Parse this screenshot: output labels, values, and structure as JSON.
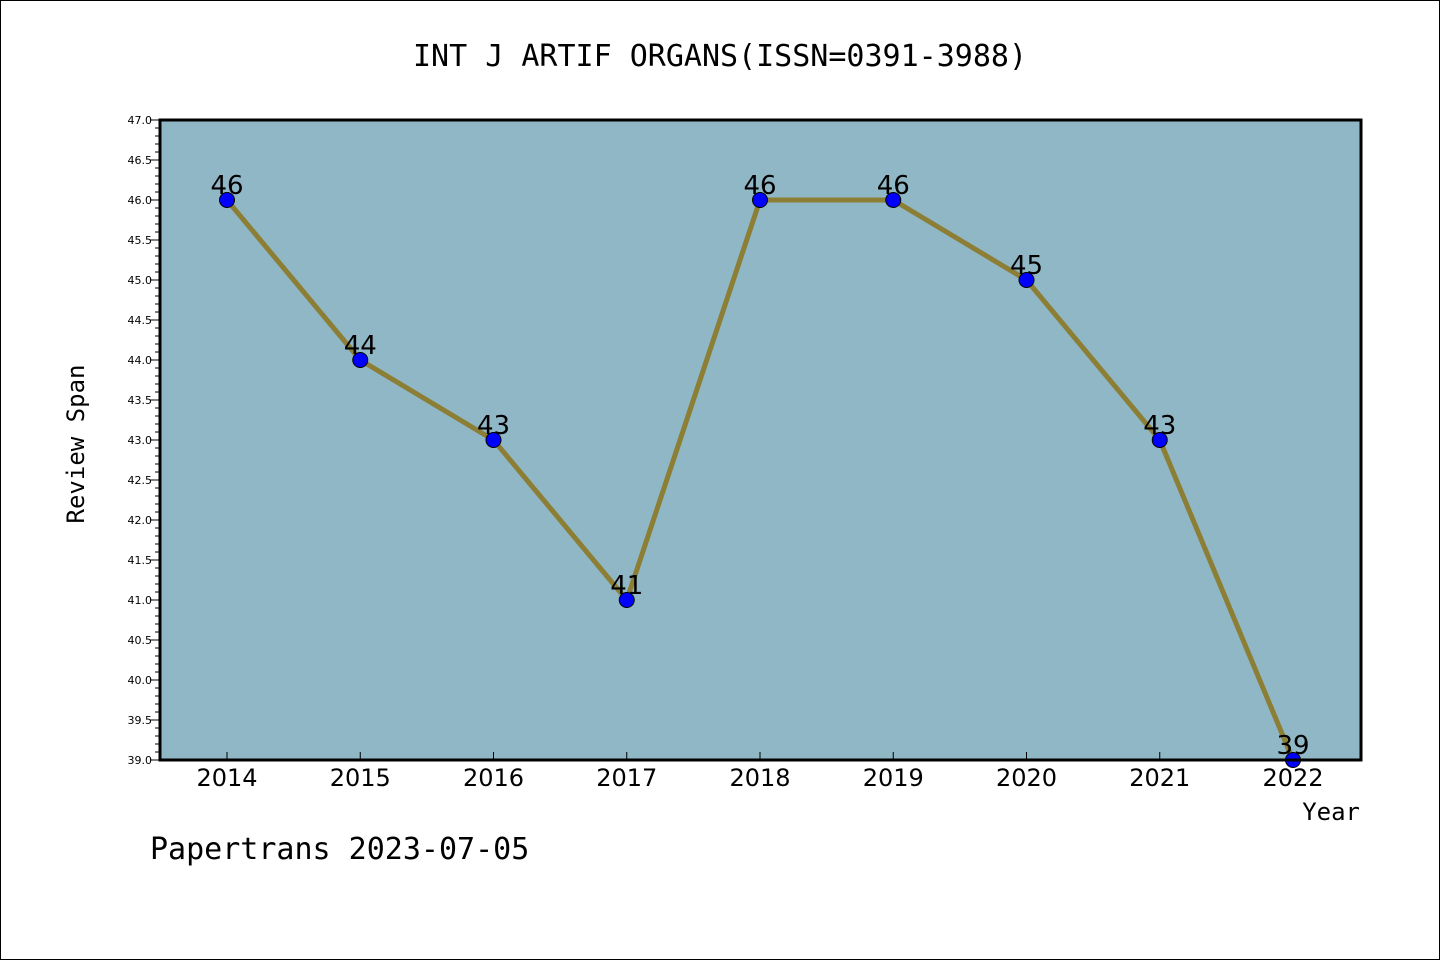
{
  "chart_data": {
    "type": "line",
    "title": "INT J ARTIF ORGANS(ISSN=0391-3988)",
    "xlabel": "Year",
    "ylabel": "Review Span",
    "categories": [
      "2014",
      "2015",
      "2016",
      "2017",
      "2018",
      "2019",
      "2020",
      "2021",
      "2022"
    ],
    "series": [
      {
        "values": [
          46,
          44,
          43,
          41,
          46,
          46,
          45,
          43,
          39
        ]
      }
    ],
    "data_labels": [
      "46",
      "44",
      "43",
      "41",
      "46",
      "46",
      "45",
      "43",
      "39"
    ],
    "ylim": [
      39.0,
      47.0
    ],
    "ytick_step": 0.5,
    "ytick_labels": [
      "39.0",
      "39.5",
      "40.0",
      "40.5",
      "41.0",
      "41.5",
      "42.0",
      "42.5",
      "43.0",
      "43.5",
      "44.0",
      "44.5",
      "45.0",
      "45.5",
      "46.0",
      "46.5",
      "47.0"
    ],
    "grid": false,
    "legend": "none",
    "colors": {
      "plot_background": "#8fb7c5",
      "line": "#8c7f35",
      "marker": "#0000ff",
      "marker_edge": "#000000"
    }
  },
  "footer": {
    "text": "Papertrans 2023-07-05"
  }
}
